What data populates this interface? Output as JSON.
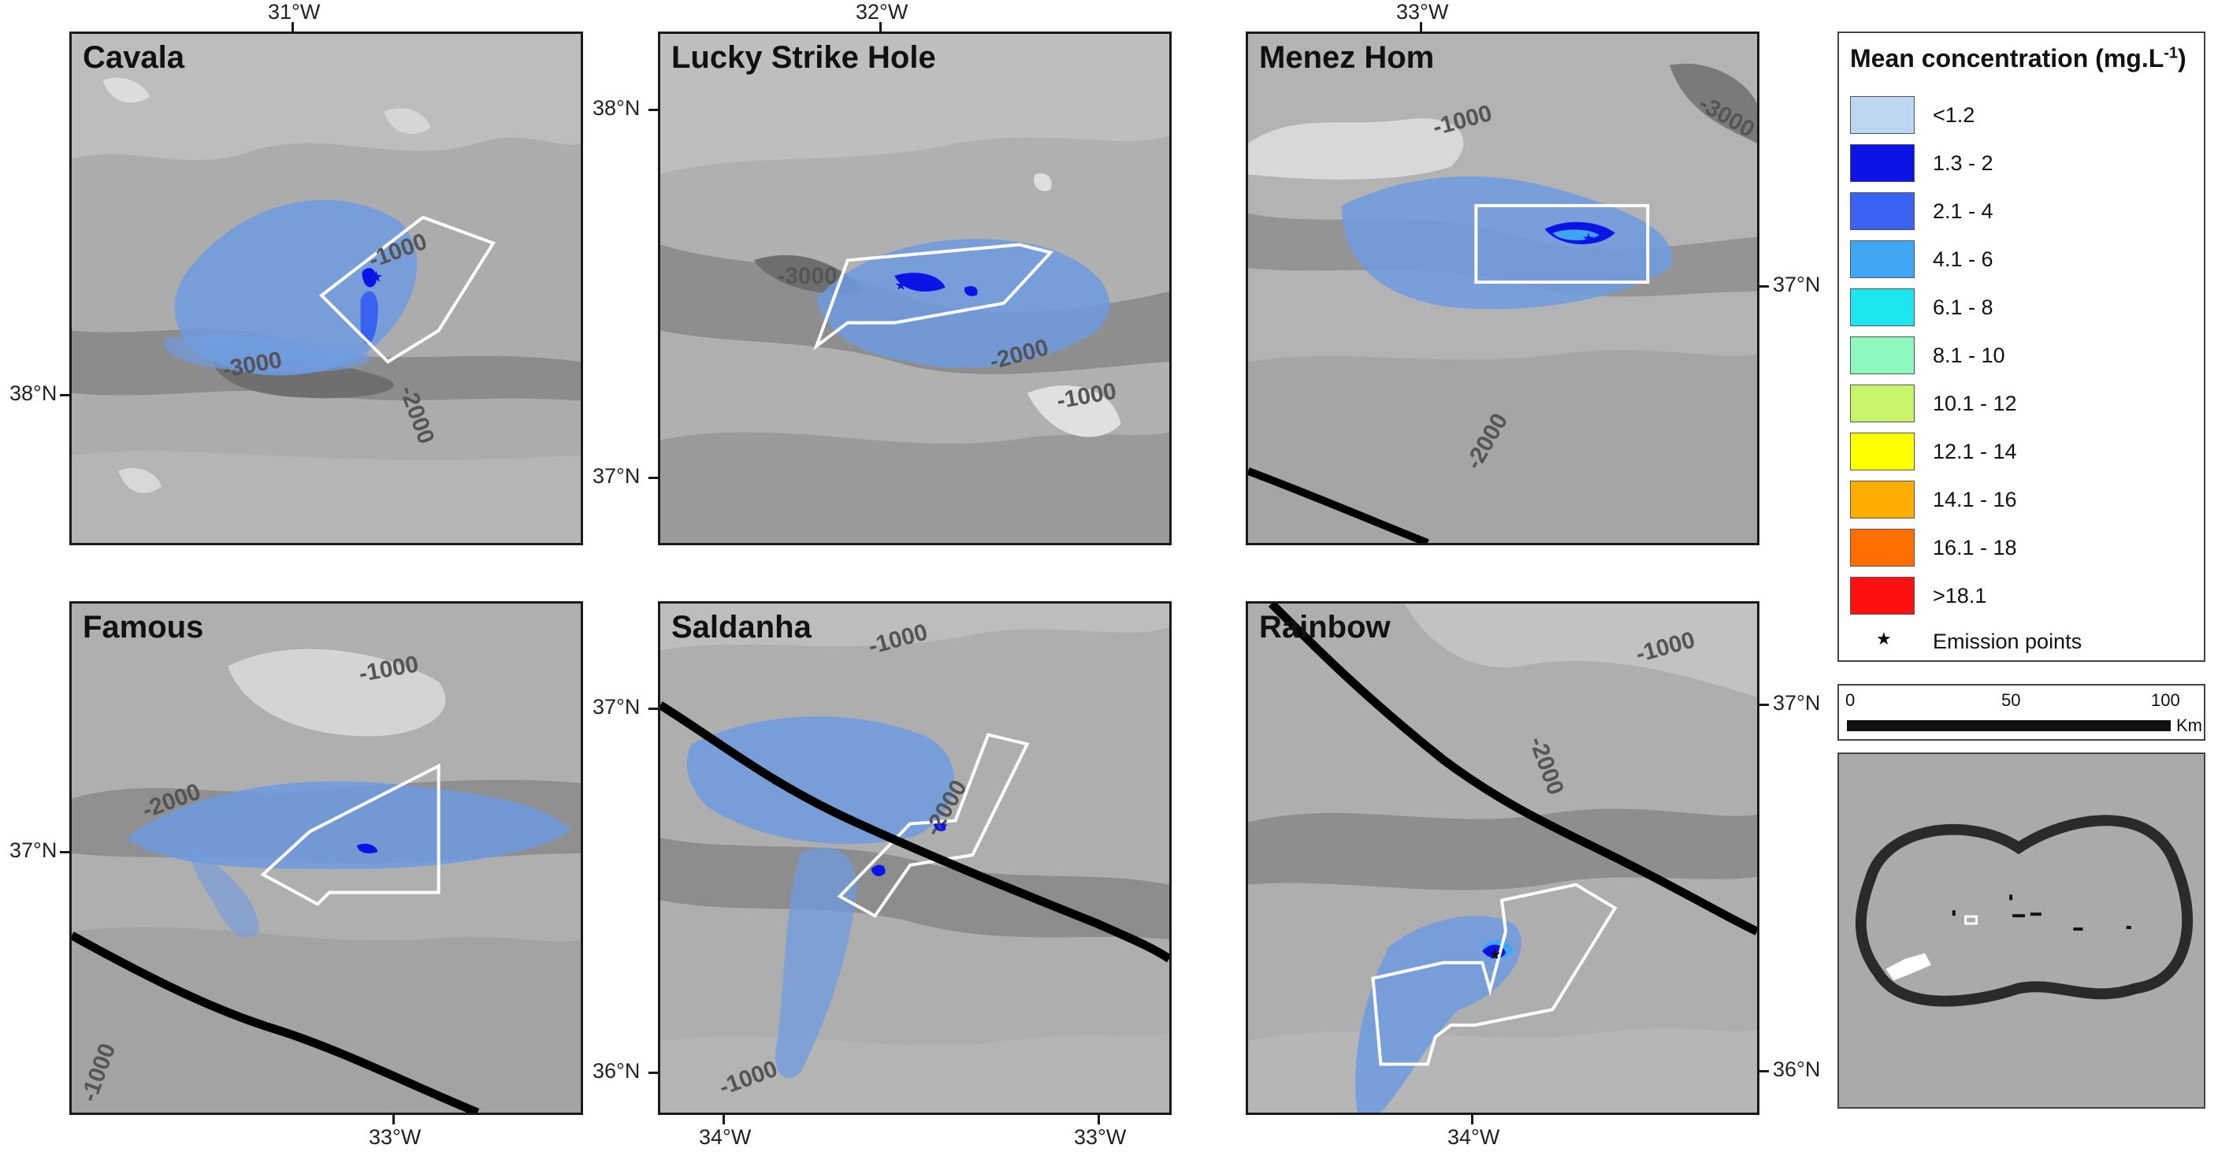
{
  "panels": [
    {
      "title": "Cavala",
      "top_labels": [
        "31°W"
      ],
      "bottom_labels": [],
      "left_labels": [
        "38°N"
      ],
      "right_labels": [],
      "contours": [
        "-1000",
        "-3000",
        "-2000"
      ]
    },
    {
      "title": "Lucky Strike Hole",
      "top_labels": [
        "32°W"
      ],
      "bottom_labels": [],
      "left_labels": [
        "38°N",
        "37°N"
      ],
      "right_labels": [],
      "contours": [
        "-3000",
        "-2000",
        "-1000"
      ]
    },
    {
      "title": "Menez Hom",
      "top_labels": [
        "33°W"
      ],
      "bottom_labels": [],
      "left_labels": [],
      "right_labels": [
        "37°N"
      ],
      "contours": [
        "-1000",
        "-3000",
        "-2000"
      ]
    },
    {
      "title": "Famous",
      "top_labels": [],
      "bottom_labels": [
        "33°W"
      ],
      "left_labels": [
        "37°N"
      ],
      "right_labels": [],
      "contours": [
        "-1000",
        "-2000",
        "-1000"
      ]
    },
    {
      "title": "Saldanha",
      "top_labels": [],
      "bottom_labels": [
        "34°W",
        "33°W"
      ],
      "left_labels": [
        "37°N",
        "36°N"
      ],
      "right_labels": [],
      "contours": [
        "-1000",
        "-2000",
        "-1000"
      ]
    },
    {
      "title": "Rainbow",
      "top_labels": [],
      "bottom_labels": [
        "34°W"
      ],
      "left_labels": [],
      "right_labels": [
        "37°N",
        "36°N"
      ],
      "contours": [
        "-1000",
        "-2000"
      ]
    }
  ],
  "legend": {
    "title": "Mean concentration (mg.L",
    "title_sup": "-1",
    "title_close": ")",
    "classes": [
      {
        "label": "<1.2",
        "color": "#bcd6f2"
      },
      {
        "label": "1.3 - 2",
        "color": "#0a14e6"
      },
      {
        "label": "2.1 - 4",
        "color": "#3a62f0"
      },
      {
        "label": "4.1 - 6",
        "color": "#3ea6f2"
      },
      {
        "label": "6.1 - 8",
        "color": "#1ee6f0"
      },
      {
        "label": "8.1 - 10",
        "color": "#8ef7be"
      },
      {
        "label": "10.1 - 12",
        "color": "#c8f46a"
      },
      {
        "label": "12.1 - 14",
        "color": "#ffff00"
      },
      {
        "label": "14.1 - 16",
        "color": "#ffae00"
      },
      {
        "label": "16.1 - 18",
        "color": "#ff6e00"
      },
      {
        "label": ">18.1",
        "color": "#ff1010"
      }
    ],
    "emission_label": "Emission points",
    "emission_icon": "star-icon"
  },
  "scalebar": {
    "labels": [
      "0",
      "50",
      "100"
    ],
    "unit": "Km"
  },
  "colors": {
    "plume": "#6f9be0",
    "plume_core": "#0a14e6",
    "box": "#ffffff",
    "zee": "#000000"
  }
}
